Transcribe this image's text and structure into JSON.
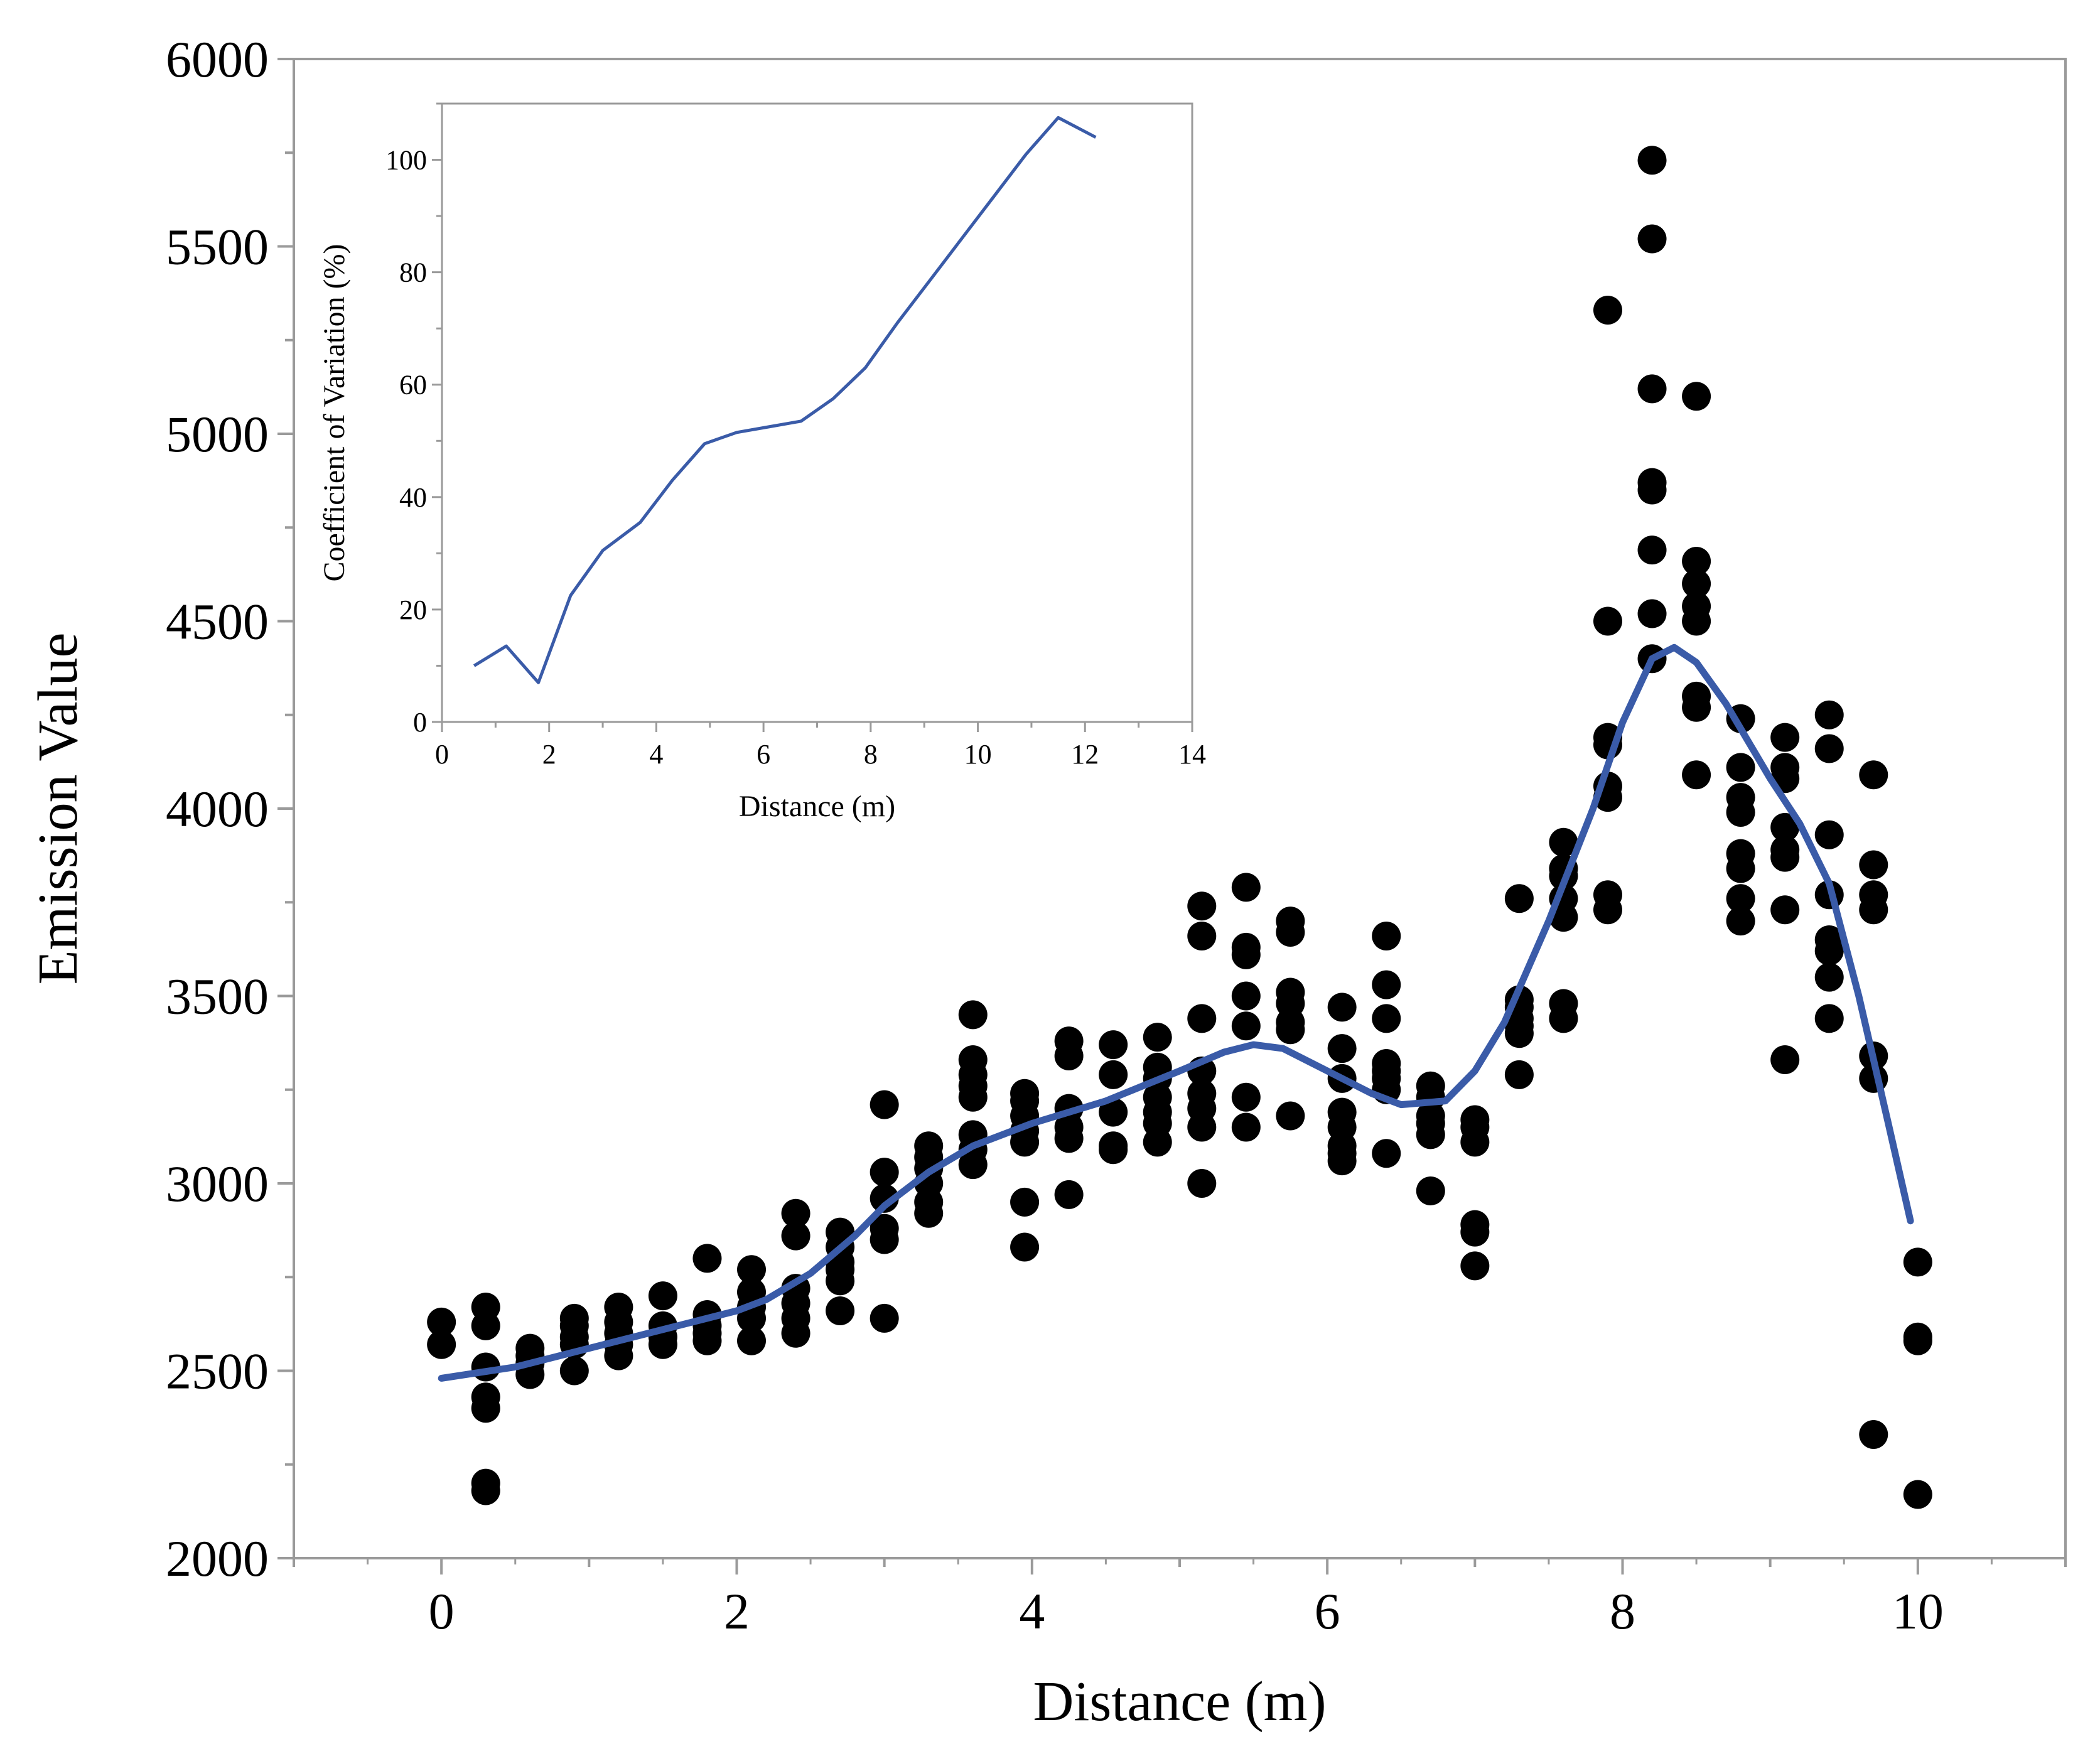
{
  "chart_data": [
    {
      "name": "main-chart",
      "type": "scatter",
      "title": "",
      "xlabel": "Distance (m)",
      "ylabel": "Emission Value",
      "xlim": [
        -1,
        11
      ],
      "ylim": [
        2000,
        6000
      ],
      "x_ticks": [
        "0",
        "2",
        "4",
        "6",
        "8",
        "10"
      ],
      "y_ticks": [
        "2000",
        "2500",
        "3000",
        "3500",
        "4000",
        "4500",
        "5000",
        "5500",
        "6000"
      ],
      "x_tick_values": [
        0,
        2,
        4,
        6,
        8,
        10
      ],
      "y_tick_values": [
        2000,
        2500,
        3000,
        3500,
        4000,
        4500,
        5000,
        5500,
        6000
      ],
      "grid": false,
      "point_color": "#000000",
      "line_color": "#3a5ba8",
      "series": [
        {
          "name": "measurements",
          "kind": "scatter",
          "points": [
            [
              0,
              2630
            ],
            [
              0,
              2570
            ],
            [
              0.3,
              2670
            ],
            [
              0.3,
              2620
            ],
            [
              0.3,
              2510
            ],
            [
              0.3,
              2430
            ],
            [
              0.3,
              2400
            ],
            [
              0.3,
              2200
            ],
            [
              0.3,
              2180
            ],
            [
              0.6,
              2560
            ],
            [
              0.6,
              2540
            ],
            [
              0.6,
              2520
            ],
            [
              0.6,
              2490
            ],
            [
              0.9,
              2640
            ],
            [
              0.9,
              2620
            ],
            [
              0.9,
              2590
            ],
            [
              0.9,
              2570
            ],
            [
              0.9,
              2500
            ],
            [
              1.2,
              2670
            ],
            [
              1.2,
              2630
            ],
            [
              1.2,
              2600
            ],
            [
              1.2,
              2570
            ],
            [
              1.2,
              2540
            ],
            [
              1.5,
              2700
            ],
            [
              1.5,
              2620
            ],
            [
              1.5,
              2590
            ],
            [
              1.5,
              2570
            ],
            [
              1.8,
              2800
            ],
            [
              1.8,
              2650
            ],
            [
              1.8,
              2620
            ],
            [
              1.8,
              2600
            ],
            [
              1.8,
              2580
            ],
            [
              2.1,
              2770
            ],
            [
              2.1,
              2710
            ],
            [
              2.1,
              2670
            ],
            [
              2.1,
              2640
            ],
            [
              2.1,
              2580
            ],
            [
              2.4,
              2920
            ],
            [
              2.4,
              2860
            ],
            [
              2.4,
              2720
            ],
            [
              2.4,
              2680
            ],
            [
              2.4,
              2640
            ],
            [
              2.4,
              2600
            ],
            [
              2.7,
              2870
            ],
            [
              2.7,
              2830
            ],
            [
              2.7,
              2790
            ],
            [
              2.7,
              2770
            ],
            [
              2.7,
              2740
            ],
            [
              2.7,
              2660
            ],
            [
              3.0,
              3210
            ],
            [
              3.0,
              3030
            ],
            [
              3.0,
              2960
            ],
            [
              3.0,
              2880
            ],
            [
              3.0,
              2850
            ],
            [
              3.0,
              2640
            ],
            [
              3.3,
              3100
            ],
            [
              3.3,
              3070
            ],
            [
              3.3,
              3040
            ],
            [
              3.3,
              3000
            ],
            [
              3.3,
              2950
            ],
            [
              3.3,
              2920
            ],
            [
              3.6,
              3450
            ],
            [
              3.6,
              3330
            ],
            [
              3.6,
              3290
            ],
            [
              3.6,
              3260
            ],
            [
              3.6,
              3230
            ],
            [
              3.6,
              3130
            ],
            [
              3.6,
              3090
            ],
            [
              3.6,
              3050
            ],
            [
              3.95,
              3240
            ],
            [
              3.95,
              3220
            ],
            [
              3.95,
              3180
            ],
            [
              3.95,
              3140
            ],
            [
              3.95,
              3110
            ],
            [
              3.95,
              2950
            ],
            [
              3.95,
              2830
            ],
            [
              4.25,
              3380
            ],
            [
              4.25,
              3340
            ],
            [
              4.25,
              3200
            ],
            [
              4.25,
              3150
            ],
            [
              4.25,
              3120
            ],
            [
              4.25,
              2970
            ],
            [
              4.55,
              3370
            ],
            [
              4.55,
              3290
            ],
            [
              4.55,
              3190
            ],
            [
              4.55,
              3100
            ],
            [
              4.55,
              3090
            ],
            [
              4.85,
              3390
            ],
            [
              4.85,
              3310
            ],
            [
              4.85,
              3280
            ],
            [
              4.85,
              3230
            ],
            [
              4.85,
              3190
            ],
            [
              4.85,
              3160
            ],
            [
              4.85,
              3110
            ],
            [
              5.15,
              3740
            ],
            [
              5.15,
              3660
            ],
            [
              5.15,
              3440
            ],
            [
              5.15,
              3300
            ],
            [
              5.15,
              3240
            ],
            [
              5.15,
              3200
            ],
            [
              5.15,
              3150
            ],
            [
              5.15,
              3000
            ],
            [
              5.45,
              3790
            ],
            [
              5.45,
              3630
            ],
            [
              5.45,
              3610
            ],
            [
              5.45,
              3500
            ],
            [
              5.45,
              3420
            ],
            [
              5.45,
              3230
            ],
            [
              5.45,
              3150
            ],
            [
              5.75,
              3700
            ],
            [
              5.75,
              3670
            ],
            [
              5.75,
              3510
            ],
            [
              5.75,
              3480
            ],
            [
              5.75,
              3430
            ],
            [
              5.75,
              3410
            ],
            [
              5.75,
              3180
            ],
            [
              6.1,
              3470
            ],
            [
              6.1,
              3360
            ],
            [
              6.1,
              3280
            ],
            [
              6.1,
              3190
            ],
            [
              6.1,
              3150
            ],
            [
              6.1,
              3100
            ],
            [
              6.1,
              3080
            ],
            [
              6.1,
              3060
            ],
            [
              6.4,
              3660
            ],
            [
              6.4,
              3530
            ],
            [
              6.4,
              3440
            ],
            [
              6.4,
              3320
            ],
            [
              6.4,
              3300
            ],
            [
              6.4,
              3280
            ],
            [
              6.4,
              3250
            ],
            [
              6.4,
              3080
            ],
            [
              6.7,
              3260
            ],
            [
              6.7,
              3230
            ],
            [
              6.7,
              3180
            ],
            [
              6.7,
              3160
            ],
            [
              6.7,
              3130
            ],
            [
              6.7,
              2980
            ],
            [
              7.0,
              3170
            ],
            [
              7.0,
              3150
            ],
            [
              7.0,
              3110
            ],
            [
              7.0,
              2890
            ],
            [
              7.0,
              2870
            ],
            [
              7.0,
              2780
            ],
            [
              7.3,
              3760
            ],
            [
              7.3,
              3490
            ],
            [
              7.3,
              3470
            ],
            [
              7.3,
              3440
            ],
            [
              7.3,
              3420
            ],
            [
              7.3,
              3400
            ],
            [
              7.3,
              3290
            ],
            [
              7.6,
              3910
            ],
            [
              7.6,
              3840
            ],
            [
              7.6,
              3820
            ],
            [
              7.6,
              3760
            ],
            [
              7.6,
              3710
            ],
            [
              7.6,
              3480
            ],
            [
              7.6,
              3440
            ],
            [
              7.9,
              5330
            ],
            [
              7.9,
              4500
            ],
            [
              7.9,
              4190
            ],
            [
              7.9,
              4170
            ],
            [
              7.9,
              4060
            ],
            [
              7.9,
              4030
            ],
            [
              7.9,
              3770
            ],
            [
              7.9,
              3730
            ],
            [
              8.2,
              5730
            ],
            [
              8.2,
              5520
            ],
            [
              8.2,
              5120
            ],
            [
              8.2,
              4870
            ],
            [
              8.2,
              4850
            ],
            [
              8.2,
              4690
            ],
            [
              8.2,
              4520
            ],
            [
              8.2,
              4400
            ],
            [
              8.5,
              5100
            ],
            [
              8.5,
              4660
            ],
            [
              8.5,
              4600
            ],
            [
              8.5,
              4540
            ],
            [
              8.5,
              4500
            ],
            [
              8.5,
              4300
            ],
            [
              8.5,
              4270
            ],
            [
              8.5,
              4090
            ],
            [
              8.8,
              4240
            ],
            [
              8.8,
              4110
            ],
            [
              8.8,
              4030
            ],
            [
              8.8,
              3990
            ],
            [
              8.8,
              3880
            ],
            [
              8.8,
              3840
            ],
            [
              8.8,
              3760
            ],
            [
              8.8,
              3700
            ],
            [
              9.1,
              4190
            ],
            [
              9.1,
              4110
            ],
            [
              9.1,
              4080
            ],
            [
              9.1,
              3950
            ],
            [
              9.1,
              3890
            ],
            [
              9.1,
              3870
            ],
            [
              9.1,
              3730
            ],
            [
              9.1,
              3330
            ],
            [
              9.4,
              4250
            ],
            [
              9.4,
              4160
            ],
            [
              9.4,
              3930
            ],
            [
              9.4,
              3770
            ],
            [
              9.4,
              3650
            ],
            [
              9.4,
              3620
            ],
            [
              9.4,
              3550
            ],
            [
              9.4,
              3440
            ],
            [
              9.7,
              4090
            ],
            [
              9.7,
              3850
            ],
            [
              9.7,
              3770
            ],
            [
              9.7,
              3730
            ],
            [
              9.7,
              3340
            ],
            [
              9.7,
              3280
            ],
            [
              9.7,
              2330
            ],
            [
              10.0,
              2790
            ],
            [
              10.0,
              2590
            ],
            [
              10.0,
              2580
            ],
            [
              10.0,
              2170
            ]
          ]
        },
        {
          "name": "smoothed-trend",
          "kind": "line",
          "points": [
            [
              0,
              2480
            ],
            [
              0.5,
              2510
            ],
            [
              1.0,
              2560
            ],
            [
              1.5,
              2610
            ],
            [
              2.0,
              2660
            ],
            [
              2.2,
              2690
            ],
            [
              2.5,
              2760
            ],
            [
              2.8,
              2860
            ],
            [
              3.0,
              2940
            ],
            [
              3.3,
              3030
            ],
            [
              3.6,
              3100
            ],
            [
              4.0,
              3160
            ],
            [
              4.5,
              3220
            ],
            [
              5.0,
              3300
            ],
            [
              5.3,
              3350
            ],
            [
              5.5,
              3370
            ],
            [
              5.7,
              3360
            ],
            [
              6.0,
              3300
            ],
            [
              6.3,
              3240
            ],
            [
              6.5,
              3210
            ],
            [
              6.8,
              3220
            ],
            [
              7.0,
              3300
            ],
            [
              7.2,
              3430
            ],
            [
              7.5,
              3700
            ],
            [
              7.8,
              4000
            ],
            [
              8.0,
              4230
            ],
            [
              8.2,
              4400
            ],
            [
              8.35,
              4430
            ],
            [
              8.5,
              4390
            ],
            [
              8.7,
              4280
            ],
            [
              9.0,
              4080
            ],
            [
              9.2,
              3960
            ],
            [
              9.4,
              3800
            ],
            [
              9.6,
              3500
            ],
            [
              9.8,
              3160
            ],
            [
              9.95,
              2900
            ]
          ]
        }
      ]
    },
    {
      "name": "inset-chart",
      "type": "line",
      "title": "",
      "xlabel": "Distance (m)",
      "ylabel": "Coefficient of Variation (%)",
      "xlim": [
        0,
        14
      ],
      "ylim": [
        0,
        110
      ],
      "x_ticks": [
        "0",
        "2",
        "4",
        "6",
        "8",
        "10",
        "12",
        "14"
      ],
      "y_ticks": [
        "0",
        "20",
        "40",
        "60",
        "80",
        "100"
      ],
      "x_tick_values": [
        0,
        2,
        4,
        6,
        8,
        10,
        12,
        14
      ],
      "y_tick_values": [
        0,
        20,
        40,
        60,
        80,
        100
      ],
      "grid": false,
      "line_color": "#3a5ba8",
      "series": [
        {
          "name": "coefficient-of-variation",
          "x": [
            0.6,
            1.2,
            1.8,
            2.4,
            3.0,
            3.7,
            4.3,
            4.9,
            5.5,
            6.1,
            6.7,
            7.3,
            7.9,
            8.5,
            9.1,
            9.7,
            10.3,
            10.9,
            11.5,
            12.2
          ],
          "values": [
            10,
            13.5,
            7,
            22.5,
            30.5,
            35.5,
            43,
            49.5,
            51.5,
            52.5,
            53.5,
            57.5,
            63,
            71,
            78.5,
            86,
            93.5,
            101,
            107.5,
            104
          ]
        }
      ]
    }
  ]
}
